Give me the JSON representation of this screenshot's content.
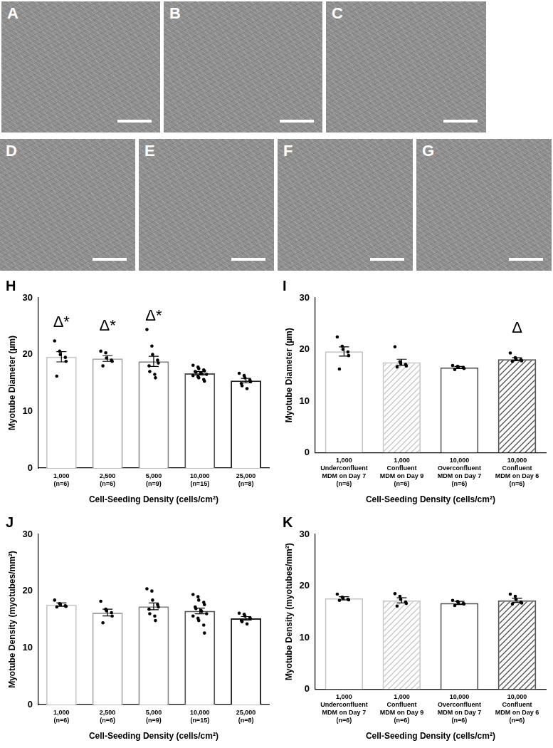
{
  "images": [
    {
      "label": "A"
    },
    {
      "label": "B"
    },
    {
      "label": "C"
    },
    {
      "label": "D"
    },
    {
      "label": "E"
    },
    {
      "label": "F"
    },
    {
      "label": "G"
    }
  ],
  "chart_data": [
    {
      "panel": "H",
      "type": "bar",
      "categories": [
        [
          "1,000",
          "(n=6)"
        ],
        [
          "2,500",
          "(n=6)"
        ],
        [
          "5,000",
          "(n=9)"
        ],
        [
          "10,000",
          "(n=15)"
        ],
        [
          "25,000",
          "(n=8)"
        ]
      ],
      "values": [
        19.6,
        19.3,
        18.8,
        16.7,
        15.4
      ],
      "errors": [
        0.9,
        0.5,
        0.9,
        0.3,
        0.4
      ],
      "points": [
        [
          22.4,
          20.6,
          20.0,
          19.5,
          18.8,
          16.2
        ],
        [
          20.6,
          20.3,
          19.4,
          19.0,
          18.8,
          18.0
        ],
        [
          24.4,
          21.5,
          20.0,
          19.0,
          18.5,
          18.0,
          17.0,
          16.5,
          15.9
        ],
        [
          18.1,
          17.8,
          17.5,
          17.3,
          17.1,
          17.0,
          16.9,
          16.8,
          16.6,
          16.5,
          16.3,
          16.1,
          15.9,
          15.6,
          15.3
        ],
        [
          16.7,
          16.3,
          15.9,
          15.5,
          15.2,
          14.9,
          14.5,
          14.0
        ]
      ],
      "annotations": [
        "Δ*",
        "Δ*",
        "Δ*",
        null,
        null
      ],
      "colors": [
        "#c8c8c8",
        "#a6a6a6",
        "#858585",
        "#555555",
        "#222222"
      ],
      "y_label": "Myotube Diameter (µm)",
      "x_label": "Cell-Seeding Density (cells/cm²)",
      "ylim": [
        0,
        30
      ],
      "yticks": [
        0,
        10,
        20,
        30
      ],
      "grid": false
    },
    {
      "panel": "I",
      "type": "bar",
      "categories": [
        [
          "1,000",
          "Underconfluent",
          "MDM on Day 7",
          "(n=6)"
        ],
        [
          "1,000",
          "Confluent",
          "MDM on Day 9",
          "(n=6)"
        ],
        [
          "10,000",
          "Overconfluent",
          "MDM on Day 7",
          "(n=6)"
        ],
        [
          "10,000",
          "Confluent",
          "MDM on Day 6",
          "(n=6)"
        ]
      ],
      "values": [
        19.6,
        17.5,
        16.5,
        18.1
      ],
      "errors": [
        0.9,
        0.6,
        0.2,
        0.3
      ],
      "points": [
        [
          22.4,
          20.6,
          20.0,
          19.5,
          18.8,
          16.2
        ],
        [
          20.5,
          17.6,
          17.3,
          17.1,
          16.8,
          16.6
        ],
        [
          16.9,
          16.7,
          16.6,
          16.5,
          16.3,
          16.1
        ],
        [
          19.3,
          18.4,
          18.1,
          18.0,
          17.8,
          17.7
        ]
      ],
      "annotations": [
        null,
        null,
        null,
        "Δ"
      ],
      "colors": [
        "#c8c8c8",
        "#c8c8c8",
        "#555555",
        "#555555"
      ],
      "y_label": "Myotube Diameter (µm)",
      "x_label": "Cell-Seeding Density (cells/cm²)",
      "ylim": [
        0,
        30
      ],
      "yticks": [
        0,
        10,
        20,
        30
      ],
      "grid": false
    },
    {
      "panel": "J",
      "type": "bar",
      "categories": [
        [
          "1,000",
          "(n=6)"
        ],
        [
          "2,500",
          "(n=6)"
        ],
        [
          "5,000",
          "(n=9)"
        ],
        [
          "10,000",
          "(n=15)"
        ],
        [
          "25,000",
          "(n=8)"
        ]
      ],
      "values": [
        17.6,
        16.2,
        17.3,
        16.5,
        15.2
      ],
      "errors": [
        0.3,
        0.6,
        0.6,
        0.5,
        0.3
      ],
      "points": [
        [
          18.4,
          17.8,
          17.6,
          17.4,
          17.3,
          17.2
        ],
        [
          18.2,
          16.8,
          16.5,
          16.2,
          15.6,
          14.4
        ],
        [
          20.4,
          20.0,
          18.4,
          17.6,
          17.2,
          16.8,
          16.0,
          15.6,
          14.8
        ],
        [
          19.4,
          19.0,
          18.4,
          18.0,
          17.6,
          17.2,
          16.9,
          16.6,
          16.4,
          16.0,
          15.6,
          15.2,
          14.8,
          14.0,
          12.6
        ],
        [
          16.1,
          15.9,
          15.6,
          15.3,
          15.1,
          14.8,
          14.6,
          14.2
        ]
      ],
      "colors": [
        "#c8c8c8",
        "#a6a6a6",
        "#858585",
        "#555555",
        "#222222"
      ],
      "y_label": "Myotube Density (myotubes/mm²)",
      "x_label": "Cell-Seeding Density (cells/cm²)",
      "ylim": [
        0,
        30
      ],
      "yticks": [
        0,
        10,
        20,
        30
      ],
      "grid": false
    },
    {
      "panel": "K",
      "type": "bar",
      "categories": [
        [
          "1,000",
          "Underconfluent",
          "MDM on Day 7",
          "(n=6)"
        ],
        [
          "1,000",
          "Confluent",
          "MDM on Day 9",
          "(n=6)"
        ],
        [
          "10,000",
          "Overconfluent",
          "MDM on Day 7",
          "(n=6)"
        ],
        [
          "10,000",
          "Confluent",
          "MDM on Day 6",
          "(n=6)"
        ]
      ],
      "values": [
        17.6,
        17.2,
        16.7,
        17.2
      ],
      "errors": [
        0.3,
        0.5,
        0.3,
        0.4
      ],
      "points": [
        [
          18.4,
          17.8,
          17.6,
          17.4,
          17.3,
          17.2
        ],
        [
          18.5,
          18.0,
          17.4,
          16.9,
          16.6,
          16.1
        ],
        [
          17.2,
          17.0,
          16.8,
          16.6,
          16.5,
          16.2
        ],
        [
          18.4,
          18.0,
          17.4,
          16.9,
          16.7,
          16.5
        ]
      ],
      "colors": [
        "#c8c8c8",
        "#c8c8c8",
        "#555555",
        "#555555"
      ],
      "y_label": "Myotube Density (myotubes/mm²)",
      "x_label": "Cell-Seeding Density (cells/cm²)",
      "ylim": [
        0,
        30
      ],
      "yticks": [
        0,
        10,
        20,
        30
      ],
      "grid": false
    }
  ]
}
